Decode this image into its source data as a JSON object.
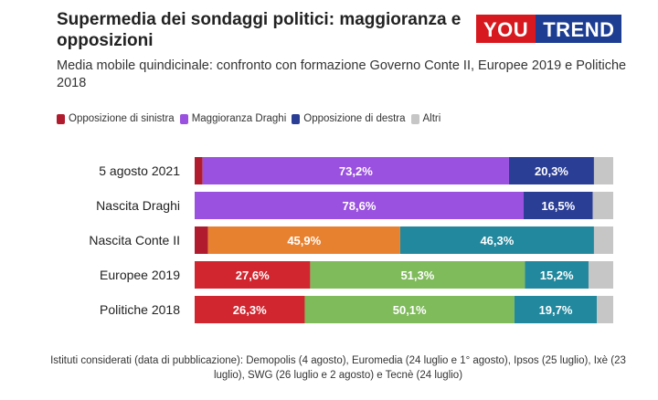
{
  "header": {
    "title": "Supermedia dei sondaggi politici: maggioranza e opposizioni",
    "subtitle": "Media mobile quindicinale: confronto con formazione Governo Conte II, Europee 2019 e Politiche 2018",
    "logo_you": "YOU",
    "logo_trend": "TREND"
  },
  "legend": [
    {
      "label": "Opposizione di sinistra",
      "color": "#b01c2e"
    },
    {
      "label": "Maggioranza Draghi",
      "color": "#9b51e0"
    },
    {
      "label": "Opposizione di destra",
      "color": "#2b3e96"
    },
    {
      "label": "Altri",
      "color": "#c6c6c6"
    }
  ],
  "chart_data": {
    "type": "bar",
    "orientation": "horizontal",
    "stacked": true,
    "categories": [
      "5 agosto 2021",
      "Nascita Draghi",
      "Nascita Conte II",
      "Europee 2019",
      "Politiche 2018"
    ],
    "rows": [
      {
        "category": "5 agosto 2021",
        "segments": [
          {
            "value": 1.9,
            "label": "",
            "color": "#b01c2e"
          },
          {
            "value": 73.2,
            "label": "73,2%",
            "color": "#9b51e0"
          },
          {
            "value": 20.3,
            "label": "20,3%",
            "color": "#2b3e96"
          },
          {
            "value": 4.6,
            "label": "",
            "color": "#c6c6c6"
          }
        ]
      },
      {
        "category": "Nascita Draghi",
        "segments": [
          {
            "value": 78.6,
            "label": "78,6%",
            "color": "#9b51e0"
          },
          {
            "value": 16.5,
            "label": "16,5%",
            "color": "#2b3e96"
          },
          {
            "value": 4.9,
            "label": "",
            "color": "#c6c6c6"
          }
        ]
      },
      {
        "category": "Nascita Conte II",
        "segments": [
          {
            "value": 3.2,
            "label": "",
            "color": "#b01c2e"
          },
          {
            "value": 45.9,
            "label": "45,9%",
            "color": "#e8812f"
          },
          {
            "value": 46.3,
            "label": "46,3%",
            "color": "#21889d"
          },
          {
            "value": 4.6,
            "label": "",
            "color": "#c6c6c6"
          }
        ]
      },
      {
        "category": "Europee 2019",
        "segments": [
          {
            "value": 27.6,
            "label": "27,6%",
            "color": "#d1262f"
          },
          {
            "value": 51.3,
            "label": "51,3%",
            "color": "#7fba5b"
          },
          {
            "value": 15.2,
            "label": "15,2%",
            "color": "#21889d"
          },
          {
            "value": 5.9,
            "label": "",
            "color": "#c6c6c6"
          }
        ]
      },
      {
        "category": "Politiche 2018",
        "segments": [
          {
            "value": 26.3,
            "label": "26,3%",
            "color": "#d1262f"
          },
          {
            "value": 50.1,
            "label": "50,1%",
            "color": "#7fba5b"
          },
          {
            "value": 19.7,
            "label": "19,7%",
            "color": "#21889d"
          },
          {
            "value": 3.9,
            "label": "",
            "color": "#c6c6c6"
          }
        ]
      }
    ],
    "xlim": [
      0,
      100
    ],
    "grid": false
  },
  "footnote": "Istituti considerati (data di pubblicazione): Demopolis (4 agosto), Euromedia (24 luglio e 1° agosto), Ipsos (25 luglio), Ixè (23 luglio), SWG (26 luglio e 2 agosto) e Tecnè (24 luglio)"
}
